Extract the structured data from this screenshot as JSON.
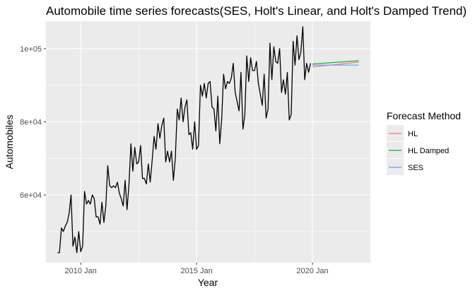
{
  "chart_data": {
    "type": "line",
    "title": "Automobile time series forecasts(SES, Holt's Linear, and Holt's Damped Trend)",
    "xlabel": "Year",
    "ylabel": "Automobiles",
    "xlim": [
      2008.5,
      2022.5
    ],
    "ylim": [
      41500,
      107500
    ],
    "x_ticks": [
      {
        "value": 2010,
        "label": "2010 Jan"
      },
      {
        "value": 2015,
        "label": "2015 Jan"
      },
      {
        "value": 2020,
        "label": "2020 Jan"
      }
    ],
    "y_ticks": [
      {
        "value": 60000,
        "label": "6e+04"
      },
      {
        "value": 80000,
        "label": "8e+04"
      },
      {
        "value": 100000,
        "label": "1e+05"
      }
    ],
    "grid": true,
    "legend": {
      "title": "Forecast Method",
      "position": "right",
      "entries": [
        {
          "label": "HL",
          "color": "#F8766D"
        },
        {
          "label": "HL Damped",
          "color": "#00BA38"
        },
        {
          "label": "SES",
          "color": "#619CFF"
        }
      ]
    },
    "history": {
      "color": "#000000",
      "x_start": 2009.0,
      "x_step": 0.08333,
      "values": [
        44200,
        44200,
        51000,
        50000,
        51500,
        52500,
        55000,
        60000,
        46000,
        48500,
        44200,
        50000,
        44500,
        46000,
        61000,
        57500,
        58500,
        57500,
        60000,
        59000,
        54000,
        54000,
        52000,
        58000,
        52500,
        57000,
        68000,
        62500,
        62000,
        62500,
        62000,
        63500,
        60500,
        59000,
        57000,
        64000,
        56000,
        63000,
        74000,
        66500,
        73000,
        68500,
        69000,
        73500,
        64500,
        64500,
        63000,
        68500,
        63500,
        69500,
        76000,
        72500,
        79500,
        75500,
        79000,
        81000,
        69000,
        72000,
        69000,
        72000,
        64000,
        70000,
        83500,
        80500,
        86500,
        80000,
        84000,
        86000,
        76500,
        77000,
        72500,
        80000,
        72500,
        73500,
        90000,
        87000,
        90500,
        86500,
        90500,
        91000,
        84000,
        83500,
        77500,
        87000,
        74000,
        80500,
        93000,
        89000,
        91000,
        90500,
        92000,
        96000,
        88000,
        85500,
        83000,
        93500,
        78000,
        82000,
        98000,
        91000,
        97500,
        94000,
        94000,
        96500,
        90500,
        87500,
        84500,
        93000,
        81000,
        83500,
        101500,
        91500,
        100500,
        96500,
        96000,
        100000,
        88000,
        91500,
        87500,
        93500,
        80500,
        82000,
        102000,
        95500,
        103500,
        97000,
        99000,
        106000,
        91500,
        96000,
        93500,
        96000
      ]
    },
    "forecasts": [
      {
        "name": "HL",
        "color": "#F8766D",
        "x": [
          2020.0,
          2022.0
        ],
        "y": [
          95000,
          96300
        ]
      },
      {
        "name": "HL Damped",
        "color": "#00BA38",
        "x": [
          2020.0,
          2022.0
        ],
        "y": [
          95800,
          96700
        ]
      },
      {
        "name": "SES",
        "color": "#619CFF",
        "x": [
          2020.0,
          2022.0
        ],
        "y": [
          95500,
          95500
        ]
      }
    ]
  }
}
